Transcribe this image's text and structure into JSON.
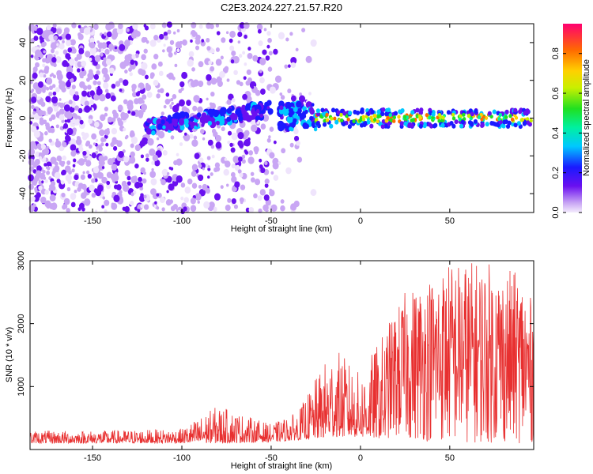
{
  "figure_title": "C2E3.2024.227.21.57.R20",
  "colors": {
    "snr_line": "#e83030",
    "spectro_low": "#cdb4f5",
    "spectro_mid": "#7a1fe6",
    "axis": "#000000"
  },
  "chart_data": [
    {
      "type": "heatmap",
      "title": "C2E3.2024.227.21.57.R20",
      "xlabel": "Height of straight line (km)",
      "ylabel": "Frequency (Hz)",
      "xlim": [
        -185,
        97
      ],
      "ylim": [
        -50,
        50
      ],
      "x_ticks": [
        -150,
        -100,
        -50,
        0,
        50
      ],
      "y_ticks": [
        -40,
        -20,
        0,
        20,
        40
      ],
      "x_tick_labels": [
        "-150",
        "-100",
        "-50",
        "0",
        "50"
      ],
      "y_tick_labels": [
        "-40",
        "-20",
        "0",
        "20",
        "40"
      ],
      "grid": false,
      "colorbar": {
        "label": "Normalized spectral amplitude",
        "range": [
          0,
          0.95
        ],
        "ticks": [
          0.0,
          0.2,
          0.4,
          0.6,
          0.8
        ],
        "tick_labels": [
          "0.0",
          "0.2",
          "0.4",
          "0.6",
          "0.8"
        ],
        "colormap": "rainbow (purple to red)"
      },
      "bands": [
        {
          "x_range": [
            -185,
            -120
          ],
          "note": "diffuse noise, amplitude 0.0-0.2, all frequencies"
        },
        {
          "x_range": [
            -120,
            -50
          ],
          "center_freq_hz": [
            -5,
            8
          ],
          "peak_amplitude": 0.35
        },
        {
          "x_range": [
            -45,
            -25
          ],
          "center_freq_hz": [
            -3,
            6
          ],
          "peak_amplitude": 0.4
        },
        {
          "x_range": [
            -25,
            97
          ],
          "center_freq_hz": 0,
          "peak_amplitude": 0.9
        }
      ]
    },
    {
      "type": "line",
      "xlabel": "Height of straight line (km)",
      "ylabel": "SNR (10 * v/v)",
      "xlim": [
        -185,
        97
      ],
      "ylim": [
        0,
        3000
      ],
      "x_ticks": [
        -150,
        -100,
        -50,
        0,
        50
      ],
      "y_ticks": [
        1000,
        2000,
        3000
      ],
      "x_tick_labels": [
        "-150",
        "-100",
        "-50",
        "0",
        "50"
      ],
      "y_tick_labels": [
        "1000",
        "2000",
        "3000"
      ],
      "grid": false,
      "envelope": [
        {
          "x": -185,
          "y_min": 100,
          "y_max": 300
        },
        {
          "x": -150,
          "y_min": 100,
          "y_max": 300
        },
        {
          "x": -100,
          "y_min": 100,
          "y_max": 330
        },
        {
          "x": -80,
          "y_min": 100,
          "y_max": 700
        },
        {
          "x": -50,
          "y_min": 120,
          "y_max": 400
        },
        {
          "x": -35,
          "y_min": 150,
          "y_max": 600
        },
        {
          "x": -15,
          "y_min": 200,
          "y_max": 1650
        },
        {
          "x": 0,
          "y_min": 200,
          "y_max": 1200
        },
        {
          "x": 25,
          "y_min": 150,
          "y_max": 2500
        },
        {
          "x": 50,
          "y_min": 100,
          "y_max": 3000
        },
        {
          "x": 70,
          "y_min": 100,
          "y_max": 3000
        },
        {
          "x": 90,
          "y_min": 100,
          "y_max": 2800
        },
        {
          "x": 97,
          "y_min": 100,
          "y_max": 2300
        }
      ]
    }
  ]
}
